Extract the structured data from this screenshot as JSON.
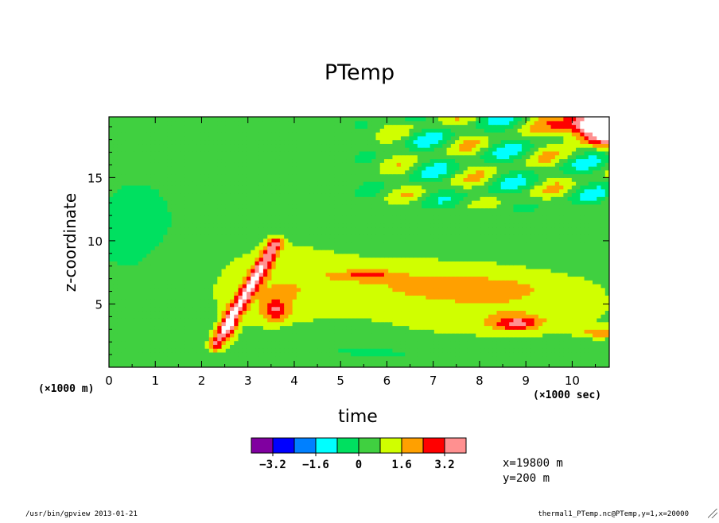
{
  "chart_data": {
    "type": "heatmap",
    "title": "PTemp",
    "xlabel": "time",
    "ylabel": "z-coordinate",
    "x_unit_label": "(×1000 sec)",
    "y_unit_label": "(×1000 m)",
    "x_range": [
      0,
      10.8
    ],
    "y_range": [
      0,
      19.8
    ],
    "x_ticks": [
      "0",
      "1",
      "2",
      "3",
      "4",
      "5",
      "6",
      "7",
      "8",
      "9",
      "10"
    ],
    "x_tick_values": [
      0,
      1,
      2,
      3,
      4,
      5,
      6,
      7,
      8,
      9,
      10
    ],
    "y_ticks": [
      "5",
      "10",
      "15"
    ],
    "y_tick_values": [
      5,
      10,
      15
    ],
    "colorbar": {
      "levels": [
        -4,
        -3.2,
        -2.4,
        -1.6,
        -0.8,
        0,
        0.8,
        1.6,
        2.4,
        3.2,
        4
      ],
      "labels": [
        "−3.2",
        "−1.6",
        "0",
        "1.6",
        "3.2"
      ],
      "label_values": [
        -3.2,
        -1.6,
        0,
        1.6,
        3.2
      ],
      "colors": [
        "#8000a0",
        "#0000ff",
        "#0080ff",
        "#00ffff",
        "#00e060",
        "#40d040",
        "#d0ff00",
        "#ffa000",
        "#ff0000",
        "#ff9090"
      ],
      "over_color": "#ffffff",
      "under_color": "#ffffff"
    },
    "background_value": 0.3,
    "features": [
      {
        "type": "gauss",
        "x": 3.6,
        "y": 5.8,
        "sx": 1.0,
        "sy": 2.6,
        "a": 0.9
      },
      {
        "type": "gauss",
        "x": 6.5,
        "y": 6.5,
        "sx": 3.0,
        "sy": 2.4,
        "a": 0.7
      },
      {
        "type": "gauss",
        "x": 8.6,
        "y": 4.5,
        "sx": 1.6,
        "sy": 1.6,
        "a": 0.8
      },
      {
        "type": "ridge",
        "x0": 2.3,
        "y0": 1.8,
        "x1": 3.6,
        "y1": 9.8,
        "w": 0.2,
        "a": 2.9
      },
      {
        "type": "gauss",
        "x": 2.6,
        "y": 3.2,
        "sx": 0.12,
        "sy": 0.9,
        "a": 1.3
      },
      {
        "type": "gauss",
        "x": 3.6,
        "y": 4.5,
        "sx": 0.18,
        "sy": 0.6,
        "a": 2.0
      },
      {
        "type": "gauss",
        "x": 7.6,
        "y": 6.4,
        "sx": 1.2,
        "sy": 0.6,
        "a": 1.0
      },
      {
        "type": "gauss",
        "x": 8.8,
        "y": 3.5,
        "sx": 0.35,
        "sy": 0.4,
        "a": 2.4
      },
      {
        "type": "gauss",
        "x": 10.6,
        "y": 2.8,
        "sx": 0.3,
        "sy": 0.3,
        "a": 1.8
      },
      {
        "type": "gauss",
        "x": 5.6,
        "y": 7.3,
        "sx": 0.5,
        "sy": 0.3,
        "a": 1.6
      },
      {
        "type": "gauss",
        "x": 0.6,
        "y": 10.0,
        "sx": 1.2,
        "sy": 6.0,
        "a": -0.4
      },
      {
        "type": "gauss",
        "x": 4.3,
        "y": 2.5,
        "sx": 0.8,
        "sy": 1.2,
        "a": -0.5
      },
      {
        "type": "gauss",
        "x": 6.2,
        "y": 1.2,
        "sx": 1.2,
        "sy": 0.6,
        "a": -0.4
      },
      {
        "type": "band",
        "x_start": 5.0,
        "y_min": 12.0,
        "y_max": 19.8,
        "a": 1.6
      },
      {
        "type": "gauss",
        "x": 10.5,
        "y": 19.0,
        "sx": 0.5,
        "sy": 0.8,
        "a": 6.0
      }
    ]
  },
  "legend": {
    "x_label": "x=19800 m",
    "y_label": "y=200 m"
  },
  "footer": {
    "left": "/usr/bin/gpview  2013-01-21",
    "right": "thermal1_PTemp.nc@PTemp,y=1,x=20000"
  }
}
